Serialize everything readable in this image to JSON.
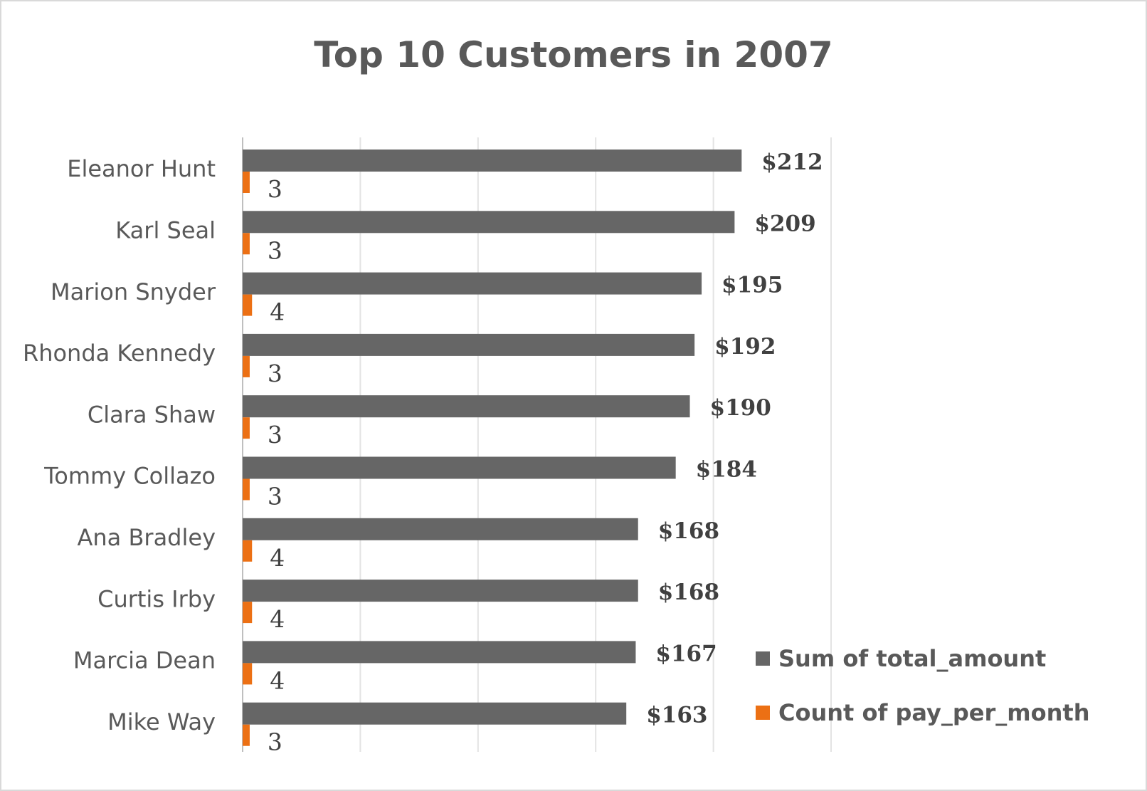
{
  "chart_data": {
    "type": "bar",
    "orientation": "horizontal",
    "title": "Top 10 Customers in 2007",
    "categories": [
      "Eleanor Hunt",
      "Karl Seal",
      "Marion Snyder",
      "Rhonda Kennedy",
      "Clara Shaw",
      "Tommy Collazo",
      "Ana Bradley",
      "Curtis Irby",
      "Marcia Dean",
      "Mike Way"
    ],
    "series": [
      {
        "name": "Sum of total_amount",
        "values": [
          212,
          209,
          195,
          192,
          190,
          184,
          168,
          168,
          167,
          163
        ],
        "labels": [
          "$212",
          "$209",
          "$195",
          "$192",
          "$190",
          "$184",
          "$168",
          "$168",
          "$167",
          "$163"
        ],
        "color": "#666666"
      },
      {
        "name": "Count of pay_per_month",
        "values": [
          3,
          3,
          4,
          3,
          3,
          3,
          4,
          4,
          4,
          3
        ],
        "labels": [
          "3",
          "3",
          "4",
          "3",
          "3",
          "3",
          "4",
          "4",
          "4",
          "3"
        ],
        "color": "#ec7014"
      }
    ],
    "xlim": [
      0,
      250
    ],
    "x_gridlines": [
      0,
      50,
      100,
      150,
      200,
      250
    ],
    "grid": true,
    "legend": "bottom-right"
  }
}
